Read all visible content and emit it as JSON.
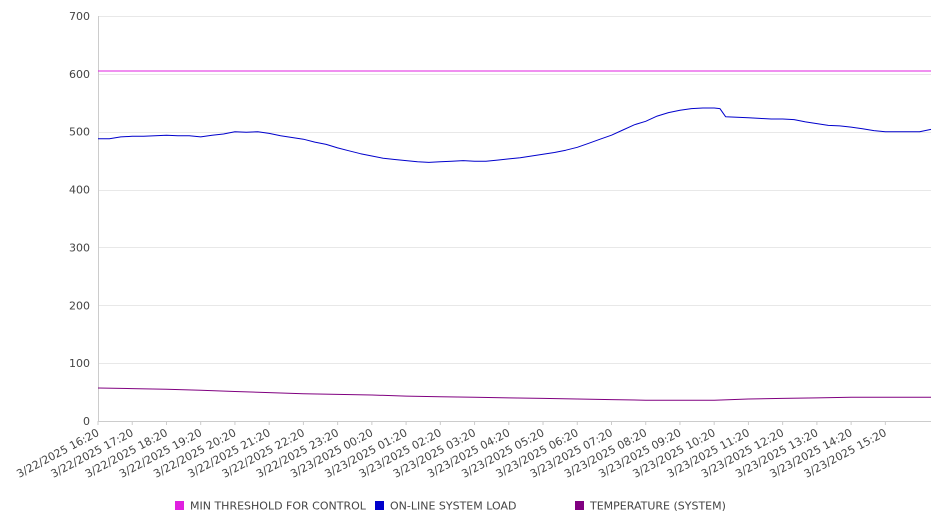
{
  "chart_data": {
    "type": "line",
    "title": "",
    "xlabel": "",
    "ylabel": "",
    "ylim": [
      0,
      700
    ],
    "y_ticks": [
      0,
      100,
      200,
      300,
      400,
      500,
      600,
      700
    ],
    "y_tick_labels": [
      "0",
      "100",
      "200",
      "300",
      "400",
      "500",
      "600",
      "700"
    ],
    "x_start": "3/22/2025 16:20",
    "x_end": "3/23/2025 16:40",
    "x_tick_labels": [
      "3/22/2025 16:20",
      "3/22/2025 17:20",
      "3/22/2025 18:20",
      "3/22/2025 19:20",
      "3/22/2025 20:20",
      "3/22/2025 21:20",
      "3/22/2025 22:20",
      "3/22/2025 23:20",
      "3/23/2025 00:20",
      "3/23/2025 01:20",
      "3/23/2025 02:20",
      "3/23/2025 03:20",
      "3/23/2025 04:20",
      "3/23/2025 05:20",
      "3/23/2025 06:20",
      "3/23/2025 07:20",
      "3/23/2025 08:20",
      "3/23/2025 09:20",
      "3/23/2025 10:20",
      "3/23/2025 11:20",
      "3/23/2025 12:20",
      "3/23/2025 13:20",
      "3/23/2025 14:20",
      "3/23/2025 15:20"
    ],
    "grid": true,
    "legend_position": "bottom",
    "series": [
      {
        "name": "MIN THRESHOLD FOR CONTROL",
        "color": "#e020e0",
        "points": [
          [
            "3/22/2025 16:20",
            605
          ],
          [
            "3/23/2025 16:40",
            605
          ]
        ]
      },
      {
        "name": "ON-LINE SYSTEM LOAD",
        "color": "#0000cc",
        "points": [
          [
            "3/22/2025 16:20",
            488
          ],
          [
            "3/22/2025 16:40",
            488
          ],
          [
            "3/22/2025 17:00",
            491
          ],
          [
            "3/22/2025 17:20",
            492
          ],
          [
            "3/22/2025 17:40",
            492
          ],
          [
            "3/22/2025 18:00",
            493
          ],
          [
            "3/22/2025 18:20",
            494
          ],
          [
            "3/22/2025 18:40",
            493
          ],
          [
            "3/22/2025 19:00",
            493
          ],
          [
            "3/22/2025 19:20",
            491
          ],
          [
            "3/22/2025 19:40",
            494
          ],
          [
            "3/22/2025 20:00",
            496
          ],
          [
            "3/22/2025 20:20",
            500
          ],
          [
            "3/22/2025 20:40",
            499
          ],
          [
            "3/22/2025 21:00",
            500
          ],
          [
            "3/22/2025 21:20",
            497
          ],
          [
            "3/22/2025 21:40",
            493
          ],
          [
            "3/22/2025 22:00",
            490
          ],
          [
            "3/22/2025 22:20",
            487
          ],
          [
            "3/22/2025 22:40",
            482
          ],
          [
            "3/22/2025 23:00",
            478
          ],
          [
            "3/22/2025 23:20",
            472
          ],
          [
            "3/22/2025 23:40",
            467
          ],
          [
            "3/23/2025 00:00",
            462
          ],
          [
            "3/23/2025 00:20",
            458
          ],
          [
            "3/23/2025 00:40",
            454
          ],
          [
            "3/23/2025 01:00",
            452
          ],
          [
            "3/23/2025 01:20",
            450
          ],
          [
            "3/23/2025 01:40",
            448
          ],
          [
            "3/23/2025 02:00",
            447
          ],
          [
            "3/23/2025 02:20",
            448
          ],
          [
            "3/23/2025 02:40",
            449
          ],
          [
            "3/23/2025 03:00",
            450
          ],
          [
            "3/23/2025 03:20",
            449
          ],
          [
            "3/23/2025 03:40",
            449
          ],
          [
            "3/23/2025 04:00",
            451
          ],
          [
            "3/23/2025 04:20",
            453
          ],
          [
            "3/23/2025 04:40",
            455
          ],
          [
            "3/23/2025 05:00",
            458
          ],
          [
            "3/23/2025 05:20",
            461
          ],
          [
            "3/23/2025 05:40",
            464
          ],
          [
            "3/23/2025 06:00",
            468
          ],
          [
            "3/23/2025 06:20",
            473
          ],
          [
            "3/23/2025 06:40",
            480
          ],
          [
            "3/23/2025 07:00",
            487
          ],
          [
            "3/23/2025 07:20",
            494
          ],
          [
            "3/23/2025 07:40",
            503
          ],
          [
            "3/23/2025 08:00",
            512
          ],
          [
            "3/23/2025 08:20",
            518
          ],
          [
            "3/23/2025 08:40",
            527
          ],
          [
            "3/23/2025 09:00",
            533
          ],
          [
            "3/23/2025 09:20",
            537
          ],
          [
            "3/23/2025 09:40",
            540
          ],
          [
            "3/23/2025 10:00",
            541
          ],
          [
            "3/23/2025 10:20",
            541
          ],
          [
            "3/23/2025 10:30",
            540
          ],
          [
            "3/23/2025 10:40",
            526
          ],
          [
            "3/23/2025 11:00",
            525
          ],
          [
            "3/23/2025 11:20",
            524
          ],
          [
            "3/23/2025 11:40",
            523
          ],
          [
            "3/23/2025 12:00",
            522
          ],
          [
            "3/23/2025 12:20",
            522
          ],
          [
            "3/23/2025 12:40",
            521
          ],
          [
            "3/23/2025 13:00",
            517
          ],
          [
            "3/23/2025 13:20",
            514
          ],
          [
            "3/23/2025 13:40",
            511
          ],
          [
            "3/23/2025 14:00",
            510
          ],
          [
            "3/23/2025 14:20",
            508
          ],
          [
            "3/23/2025 14:40",
            505
          ],
          [
            "3/23/2025 15:00",
            502
          ],
          [
            "3/23/2025 15:20",
            500
          ],
          [
            "3/23/2025 15:40",
            500
          ],
          [
            "3/23/2025 16:00",
            500
          ],
          [
            "3/23/2025 16:20",
            500
          ],
          [
            "3/23/2025 16:40",
            504
          ]
        ]
      },
      {
        "name": "TEMPERATURE (SYSTEM)",
        "color": "#800080",
        "points": [
          [
            "3/22/2025 16:20",
            57
          ],
          [
            "3/22/2025 17:20",
            56
          ],
          [
            "3/22/2025 18:20",
            55
          ],
          [
            "3/22/2025 19:20",
            53
          ],
          [
            "3/22/2025 20:20",
            51
          ],
          [
            "3/22/2025 21:20",
            49
          ],
          [
            "3/22/2025 22:20",
            47
          ],
          [
            "3/22/2025 23:20",
            46
          ],
          [
            "3/23/2025 00:20",
            45
          ],
          [
            "3/23/2025 01:20",
            43
          ],
          [
            "3/23/2025 02:20",
            42
          ],
          [
            "3/23/2025 03:20",
            41
          ],
          [
            "3/23/2025 04:20",
            40
          ],
          [
            "3/23/2025 05:20",
            39
          ],
          [
            "3/23/2025 06:20",
            38
          ],
          [
            "3/23/2025 07:20",
            37
          ],
          [
            "3/23/2025 08:20",
            36
          ],
          [
            "3/23/2025 09:20",
            36
          ],
          [
            "3/23/2025 10:20",
            36
          ],
          [
            "3/23/2025 11:20",
            38
          ],
          [
            "3/23/2025 12:20",
            39
          ],
          [
            "3/23/2025 13:20",
            40
          ],
          [
            "3/23/2025 14:20",
            41
          ],
          [
            "3/23/2025 15:20",
            41
          ],
          [
            "3/23/2025 16:40",
            41
          ]
        ]
      }
    ]
  },
  "legend": [
    {
      "label": "MIN THRESHOLD FOR CONTROL",
      "color": "#e020e0"
    },
    {
      "label": "ON-LINE SYSTEM LOAD",
      "color": "#0000cc"
    },
    {
      "label": "TEMPERATURE (SYSTEM)",
      "color": "#800080"
    }
  ],
  "colors": {
    "grid": "#e8e8e8",
    "axis": "#cccccc",
    "text": "#444444"
  }
}
